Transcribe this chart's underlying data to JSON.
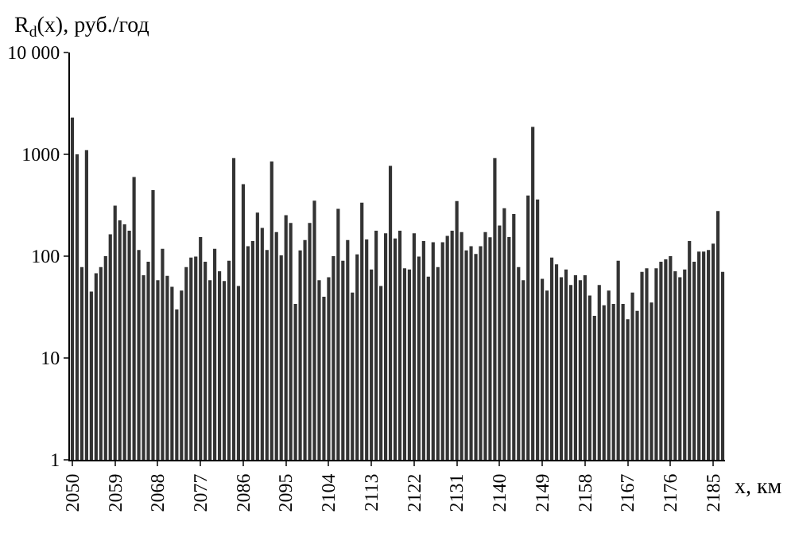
{
  "chart_data": {
    "type": "bar",
    "ylabel": "R$_{d}$(x), руб./год",
    "xlabel": "x, км",
    "x": [
      2050,
      2051,
      2052,
      2053,
      2054,
      2055,
      2056,
      2057,
      2058,
      2059,
      2060,
      2061,
      2062,
      2063,
      2064,
      2065,
      2066,
      2067,
      2068,
      2069,
      2070,
      2071,
      2072,
      2073,
      2074,
      2075,
      2076,
      2077,
      2078,
      2079,
      2080,
      2081,
      2082,
      2083,
      2084,
      2085,
      2086,
      2087,
      2088,
      2089,
      2090,
      2091,
      2092,
      2093,
      2094,
      2095,
      2096,
      2097,
      2098,
      2099,
      2100,
      2101,
      2102,
      2103,
      2104,
      2105,
      2106,
      2107,
      2108,
      2109,
      2110,
      2111,
      2112,
      2113,
      2114,
      2115,
      2116,
      2117,
      2118,
      2119,
      2120,
      2121,
      2122,
      2123,
      2124,
      2125,
      2126,
      2127,
      2128,
      2129,
      2130,
      2131,
      2132,
      2133,
      2134,
      2135,
      2136,
      2137,
      2138,
      2139,
      2140,
      2141,
      2142,
      2143,
      2144,
      2145,
      2146,
      2147,
      2148,
      2149,
      2150,
      2151,
      2152,
      2153,
      2154,
      2155,
      2156,
      2157,
      2158,
      2159,
      2160,
      2161,
      2162,
      2163,
      2164,
      2165,
      2166,
      2167,
      2168,
      2169,
      2170,
      2171,
      2172,
      2173,
      2174,
      2175,
      2176,
      2177,
      2178,
      2179,
      2180,
      2181,
      2182,
      2183,
      2184,
      2185,
      2186,
      2187
    ],
    "values": [
      2300,
      1000,
      78,
      1100,
      45,
      68,
      78,
      100,
      164,
      313,
      225,
      205,
      178,
      600,
      115,
      65,
      88,
      445,
      58,
      118,
      64,
      50,
      30,
      46,
      78,
      97,
      99,
      154,
      88,
      58,
      118,
      71,
      57,
      90,
      920,
      51,
      510,
      125,
      141,
      268,
      189,
      115,
      849,
      172,
      102,
      253,
      212,
      34,
      114,
      144,
      212,
      351,
      58,
      40,
      62,
      100,
      291,
      90,
      144,
      44,
      104,
      335,
      146,
      74,
      178,
      51,
      168,
      772,
      149,
      178,
      76,
      74,
      168,
      99,
      141,
      63,
      137,
      78,
      137,
      158,
      178,
      347,
      172,
      114,
      125,
      105,
      125,
      172,
      153,
      920,
      200,
      295,
      154,
      259,
      78,
      58,
      395,
      1860,
      360,
      60,
      46,
      97,
      83,
      62,
      74,
      52,
      65,
      58,
      65,
      41,
      26,
      52,
      33,
      46,
      34,
      90,
      34,
      24,
      44,
      29,
      70,
      76,
      35,
      76,
      88,
      93,
      100,
      71,
      62,
      74,
      141,
      88,
      111,
      111,
      115,
      133,
      278,
      70
    ],
    "color": "#333333",
    "log": "y",
    "ylim": [
      1,
      10000
    ],
    "yticks": [
      1,
      10,
      100,
      1000,
      {
        "value": 10000,
        "label": "10 000"
      }
    ],
    "xlim": [
      2049.5,
      2187.5
    ],
    "xticks": [
      2050,
      2059,
      2068,
      2077,
      2086,
      2095,
      2104,
      2113,
      2122,
      2131,
      2140,
      2149,
      2158,
      2167,
      2176,
      2185
    ],
    "grid": false
  }
}
